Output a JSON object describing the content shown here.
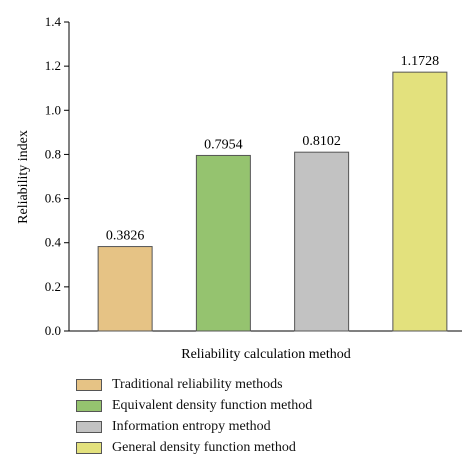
{
  "chart_data": {
    "type": "bar",
    "categories": [
      "Traditional reliability methods",
      "Equivalent density function method",
      "Information entropy method",
      "General density function method"
    ],
    "values": [
      0.3826,
      0.7954,
      0.8102,
      1.1728
    ],
    "value_labels": [
      "0.3826",
      "0.7954",
      "0.8102",
      "1.1728"
    ],
    "colors": [
      "#e6c385",
      "#95c36f",
      "#c2c2c2",
      "#e3e17d"
    ],
    "xlabel": "Reliability calculation method",
    "ylabel": "Reliability index",
    "ylim": [
      0,
      1.4
    ],
    "yticks": [
      0,
      0.2,
      0.4,
      0.6,
      0.8,
      1.0,
      1.2,
      1.4
    ],
    "ytick_labels": [
      "0.0",
      "0.2",
      "0.4",
      "0.6",
      "0.8",
      "1.0",
      "1.2",
      "1.4"
    ],
    "grid": false,
    "legend_position": "below"
  }
}
